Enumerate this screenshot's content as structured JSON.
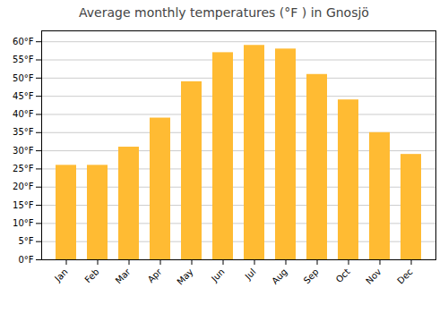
{
  "chart_data": {
    "type": "bar",
    "title": "Average monthly temperatures (°F ) in Gnosjö",
    "categories": [
      "Jan",
      "Feb",
      "Mar",
      "Apr",
      "May",
      "Jun",
      "Jul",
      "Aug",
      "Sep",
      "Oct",
      "Nov",
      "Dec"
    ],
    "values": [
      26,
      26,
      31,
      39,
      49,
      57,
      59,
      58,
      51,
      44,
      35,
      29
    ],
    "color": "#FFBB33",
    "ylim": [
      0,
      63
    ],
    "yticks": [
      {
        "value": 0,
        "label": "0°F"
      },
      {
        "value": 5,
        "label": "5°F"
      },
      {
        "value": 10,
        "label": "10°F"
      },
      {
        "value": 15,
        "label": "15°F"
      },
      {
        "value": 20,
        "label": "20°F"
      },
      {
        "value": 25,
        "label": "25°F"
      },
      {
        "value": 30,
        "label": "30°F"
      },
      {
        "value": 35,
        "label": "35°F"
      },
      {
        "value": 40,
        "label": "40°F"
      },
      {
        "value": 45,
        "label": "45°F"
      },
      {
        "value": 50,
        "label": "50°F"
      },
      {
        "value": 55,
        "label": "55°F"
      },
      {
        "value": 60,
        "label": "60°F"
      }
    ],
    "grid": true
  }
}
